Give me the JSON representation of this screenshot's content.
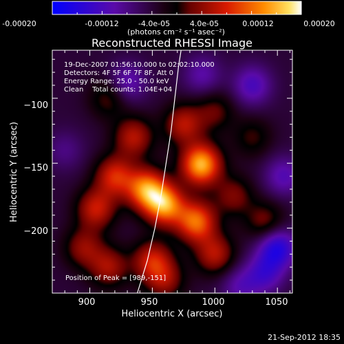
{
  "colorbar": {
    "ticks": [
      "-0.00020",
      "-0.00012",
      "-4.0e-05",
      "4.0e-05",
      "0.00012",
      "0.00020"
    ],
    "unit_label": "(photons cm⁻² s⁻¹ asec⁻²)",
    "range": [
      -0.0002,
      0.0002
    ],
    "colors": [
      "#0000ff",
      "#5a0aa8",
      "#000000",
      "#c80000",
      "#ff8c00",
      "#ffffff"
    ]
  },
  "footer_timestamp": "21-Sep-2012 18:35",
  "chart_data": {
    "type": "heatmap",
    "title": "Reconstructed RHESSI Image",
    "xlabel": "Heliocentric X (arcsec)",
    "ylabel": "Heliocentric Y (arcsec)",
    "xlim": [
      870,
      1062
    ],
    "ylim": [
      -250,
      -63
    ],
    "x_ticks": [
      900,
      950,
      1000,
      1050
    ],
    "x_tick_labels": [
      "900",
      "950",
      "1000",
      "1050"
    ],
    "y_ticks": [
      -100,
      -150,
      -200
    ],
    "y_tick_labels": [
      "−100",
      "−150",
      "−200"
    ],
    "annotations": [
      "19-Dec-2007 01:56:10.000 to 02:02:10.000",
      "Detectors: 4F 5F 6F 7F 8F, Att 0",
      "Energy Range: 25.0 - 50.0 keV",
      "Clean    Total counts: 1.04E+04"
    ],
    "peak_label": "Position of Peak = [989,-151]",
    "peak": [
      989,
      -151
    ],
    "limb_curve": [
      [
        938,
        -250
      ],
      [
        946,
        -225
      ],
      [
        952,
        -200
      ],
      [
        957,
        -175
      ],
      [
        961,
        -150
      ],
      [
        965,
        -125
      ],
      [
        968,
        -100
      ],
      [
        971,
        -75
      ],
      [
        973,
        -63
      ]
    ],
    "sources": [
      {
        "x": 989,
        "y": -151,
        "amp": 0.0002
      },
      {
        "x": 960,
        "y": -182,
        "amp": 0.00018
      },
      {
        "x": 945,
        "y": -170,
        "amp": 0.00017
      },
      {
        "x": 985,
        "y": -195,
        "amp": 0.00016
      },
      {
        "x": 920,
        "y": -160,
        "amp": 0.00012
      },
      {
        "x": 905,
        "y": -185,
        "amp": 0.00011
      },
      {
        "x": 935,
        "y": -130,
        "amp": 0.0001
      },
      {
        "x": 975,
        "y": -120,
        "amp": 0.0001
      },
      {
        "x": 1000,
        "y": -220,
        "amp": 0.0001
      },
      {
        "x": 950,
        "y": -225,
        "amp": 0.00011
      },
      {
        "x": 915,
        "y": -230,
        "amp": 9e-05
      },
      {
        "x": 960,
        "y": -240,
        "amp": 8e-05
      },
      {
        "x": 895,
        "y": -215,
        "amp": 8e-05
      },
      {
        "x": 1040,
        "y": -195,
        "amp": 7e-05
      },
      {
        "x": 1000,
        "y": -110,
        "amp": 6e-05
      },
      {
        "x": 915,
        "y": -100,
        "amp": 6e-05
      },
      {
        "x": 1030,
        "y": -130,
        "amp": 5e-05
      },
      {
        "x": 1015,
        "y": -175,
        "amp": 7e-05
      },
      {
        "x": 1050,
        "y": -215,
        "amp": -0.00012
      },
      {
        "x": 1030,
        "y": -90,
        "amp": -8e-05
      },
      {
        "x": 1055,
        "y": -160,
        "amp": -7e-05
      },
      {
        "x": 930,
        "y": -88,
        "amp": -7e-05
      },
      {
        "x": 990,
        "y": -82,
        "amp": -6e-05
      },
      {
        "x": 1040,
        "y": -235,
        "amp": -8e-05
      },
      {
        "x": 880,
        "y": -140,
        "amp": -4e-05
      },
      {
        "x": 1020,
        "y": -245,
        "amp": -6e-05
      }
    ]
  }
}
